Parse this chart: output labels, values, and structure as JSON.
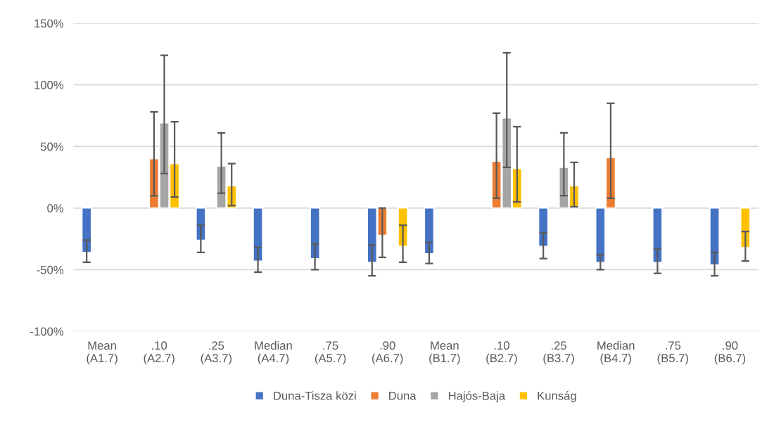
{
  "chart_data": {
    "type": "bar",
    "categories": [
      "Mean\n(A1.7)",
      ".10\n(A2.7)",
      ".25\n(A3.7)",
      "Median\n(A4.7)",
      ".75\n(A5.7)",
      ".90\n(A6.7)",
      "Mean\n(B1.7)",
      ".10\n(B2.7)",
      ".25\n(B3.7)",
      "Median\n(B4.7)",
      ".75\n(B5.7)",
      ".90\n(B6.7)"
    ],
    "series": [
      {
        "name": "Duna-Tisza közi",
        "color": "#4472c4",
        "values": [
          -36,
          null,
          -26,
          -43,
          -41,
          -44,
          -37,
          null,
          -31,
          -44,
          -44,
          -46
        ],
        "errors": [
          [
            -44,
            -26
          ],
          null,
          [
            -36,
            -14
          ],
          [
            -52,
            -32
          ],
          [
            -50,
            -29
          ],
          [
            -55,
            -30
          ],
          [
            -45,
            -28
          ],
          null,
          [
            -41,
            -20
          ],
          [
            -50,
            -38
          ],
          [
            -53,
            -33
          ],
          [
            -55,
            -36
          ]
        ]
      },
      {
        "name": "Duna",
        "color": "#ed7d31",
        "values": [
          null,
          40,
          null,
          null,
          null,
          -22,
          null,
          38,
          null,
          41,
          null,
          null
        ],
        "errors": [
          null,
          [
            10,
            78
          ],
          null,
          null,
          null,
          [
            -40,
            0
          ],
          null,
          [
            8,
            77
          ],
          null,
          [
            8,
            85
          ],
          null,
          null
        ]
      },
      {
        "name": "Hajós-Baja",
        "color": "#a5a5a5",
        "values": [
          null,
          69,
          34,
          null,
          null,
          null,
          null,
          73,
          33,
          null,
          null,
          null
        ],
        "errors": [
          null,
          [
            28,
            124
          ],
          [
            12,
            61
          ],
          null,
          null,
          null,
          null,
          [
            33,
            126
          ],
          [
            10,
            61
          ],
          null,
          null,
          null
        ]
      },
      {
        "name": "Kunság",
        "color": "#ffc000",
        "values": [
          null,
          36,
          18,
          null,
          null,
          -31,
          null,
          32,
          18,
          null,
          null,
          -32
        ],
        "errors": [
          null,
          [
            9,
            70
          ],
          [
            2,
            36
          ],
          null,
          null,
          [
            -44,
            -14
          ],
          null,
          [
            5,
            66
          ],
          [
            1,
            37
          ],
          null,
          null,
          [
            -43,
            -19
          ]
        ]
      }
    ],
    "ylim": [
      -100,
      150
    ],
    "yticks": [
      {
        "value": -100,
        "label": "-100%"
      },
      {
        "value": -50,
        "label": "-50%"
      },
      {
        "value": 0,
        "label": "0%"
      },
      {
        "value": 50,
        "label": "50%"
      },
      {
        "value": 100,
        "label": "100%"
      },
      {
        "value": 150,
        "label": "150%"
      }
    ],
    "grid": "y",
    "legend": "bottom"
  }
}
